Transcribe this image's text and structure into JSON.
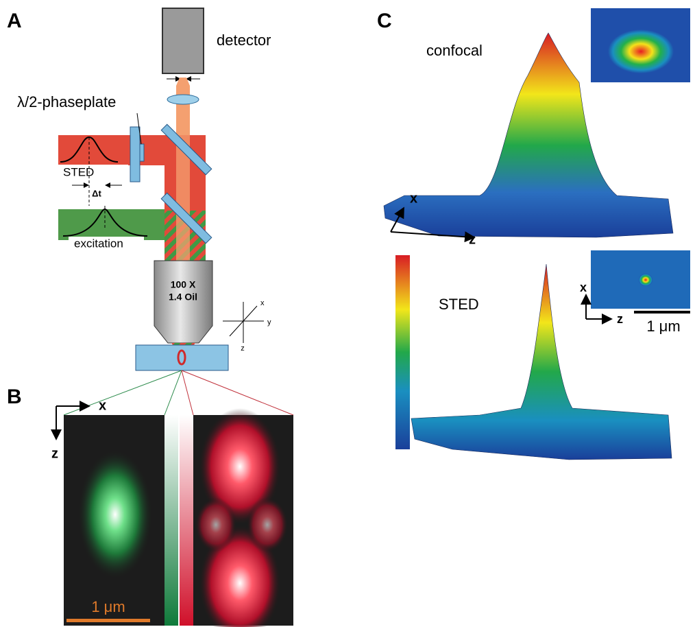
{
  "panels": {
    "a": {
      "label": "A",
      "detector": "detector",
      "phaseplate": "λ/2-phaseplate",
      "sted": "STED",
      "delay": "Δt",
      "excitation": "excitation",
      "objective": [
        "100 X",
        "1.4 Oil"
      ],
      "axes": [
        "x",
        "y",
        "z"
      ]
    },
    "b": {
      "label": "B",
      "axes": [
        "x",
        "z"
      ],
      "scale": "1 μm"
    },
    "c": {
      "label": "C",
      "confocal": "confocal",
      "axes": [
        "x",
        "z"
      ],
      "sted": "STED",
      "inset_axes": [
        "x",
        "z"
      ],
      "scale": "1 μm"
    }
  }
}
